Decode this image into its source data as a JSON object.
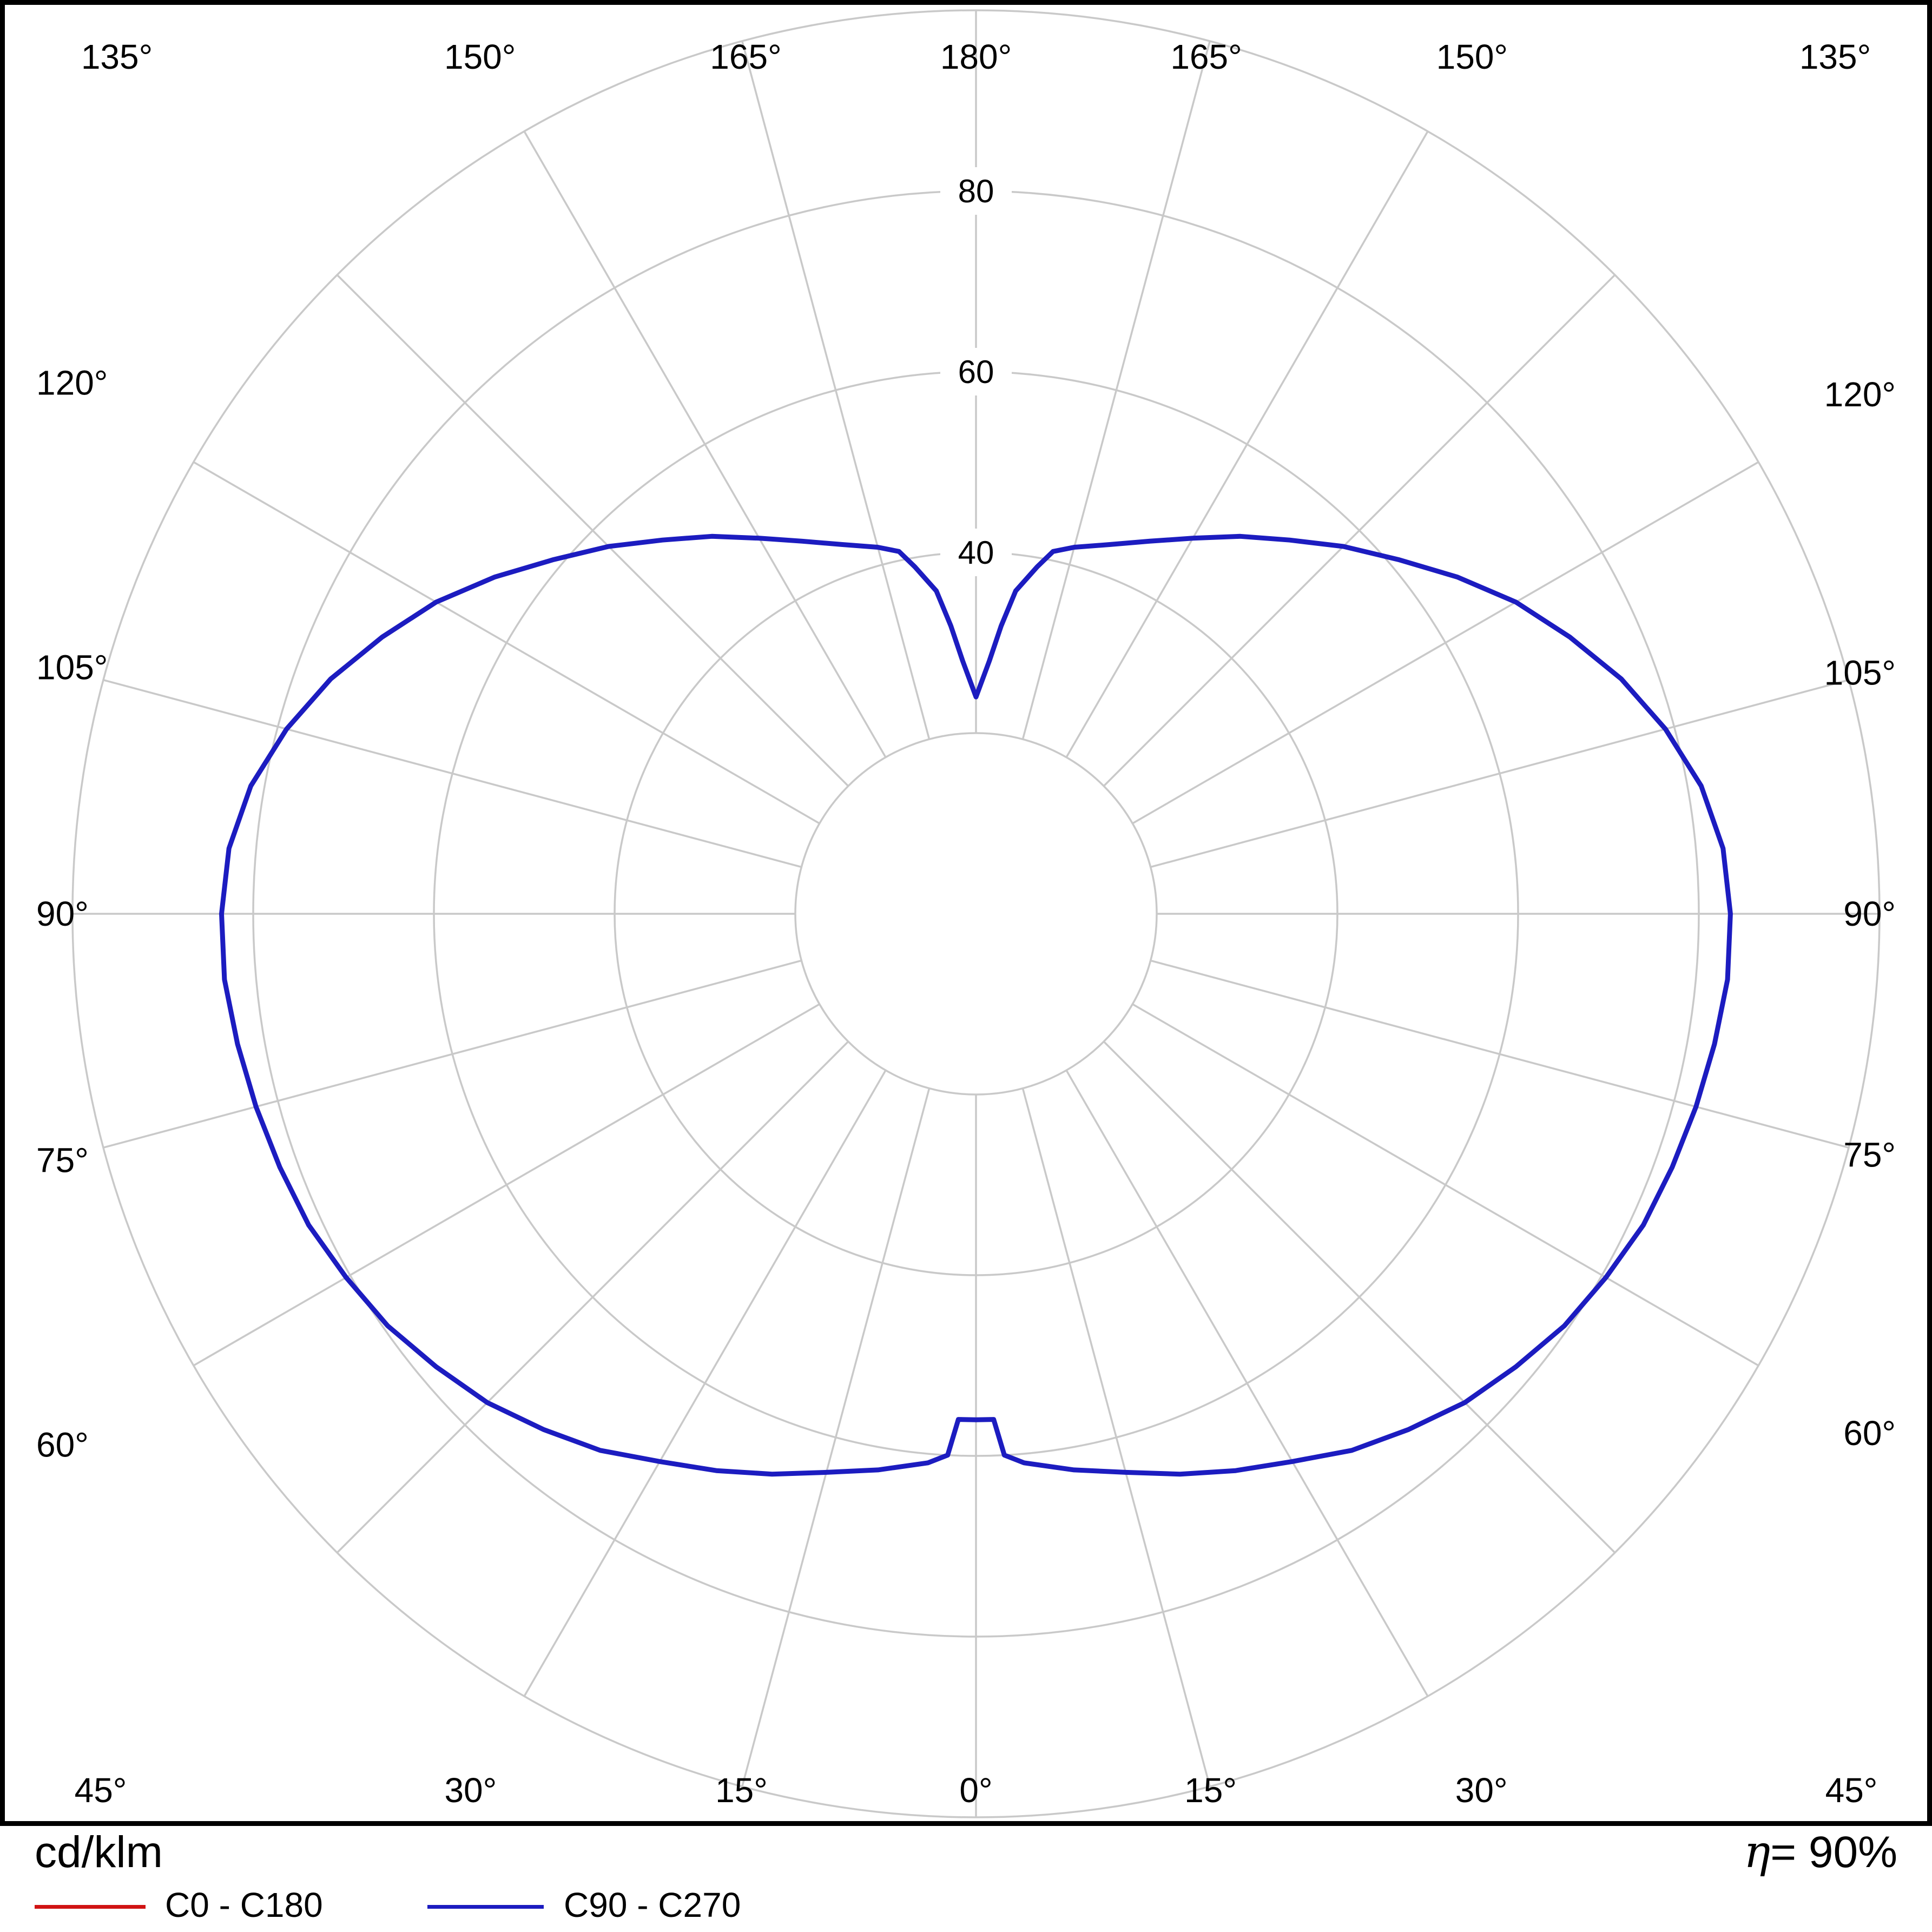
{
  "chart_data": {
    "type": "line",
    "subtype": "polar-photometric-luminous-intensity",
    "units_label": "cd/klm",
    "efficiency_symbol": "η",
    "efficiency_value": "= 90%",
    "angle_ticks_deg": [
      0,
      15,
      30,
      45,
      60,
      75,
      90,
      105,
      120,
      135,
      150,
      165,
      180
    ],
    "angle_tick_step_deg": 15,
    "radial_grid": [
      20,
      40,
      60,
      80,
      100
    ],
    "radial_tick_labels": [
      40,
      60,
      80
    ],
    "rmax": 100,
    "grid_color": "#c9c9c9",
    "grid_on": true,
    "legend_position": "bottom",
    "series": [
      {
        "name": "C0 - C180",
        "color": "#d01414",
        "gamma_deg": [
          0,
          2,
          3,
          5,
          10,
          15,
          20,
          25,
          30,
          35,
          40,
          45,
          50,
          55,
          60,
          65,
          70,
          75,
          80,
          85,
          90,
          95,
          100,
          105,
          110,
          115,
          120,
          125,
          130,
          135,
          140,
          145,
          150,
          155,
          160,
          165,
          168,
          170,
          173,
          175,
          177,
          180
        ],
        "values_cd_klm": [
          56,
          56,
          60,
          61,
          62.5,
          64,
          66,
          68,
          70,
          72.5,
          74.5,
          76.5,
          78,
          79.5,
          80.5,
          81.5,
          82,
          82.5,
          83,
          83.5,
          83.5,
          83,
          81.5,
          79,
          76,
          72.5,
          69,
          65,
          61,
          57.5,
          54,
          51,
          48,
          45.5,
          43.5,
          42,
          41,
          39,
          36,
          32,
          28,
          24
        ]
      },
      {
        "name": "C90 - C270",
        "color": "#1c1cc0",
        "gamma_deg": [
          0,
          2,
          3,
          5,
          10,
          15,
          20,
          25,
          30,
          35,
          40,
          45,
          50,
          55,
          60,
          65,
          70,
          75,
          80,
          85,
          90,
          95,
          100,
          105,
          110,
          115,
          120,
          125,
          130,
          135,
          140,
          145,
          150,
          155,
          160,
          165,
          168,
          170,
          173,
          175,
          177,
          180
        ],
        "values_cd_klm": [
          56,
          56,
          60,
          61,
          62.5,
          64,
          66,
          68,
          70,
          72.5,
          74.5,
          76.5,
          78,
          79.5,
          80.5,
          81.5,
          82,
          82.5,
          83,
          83.5,
          83.5,
          83,
          81.5,
          79,
          76,
          72.5,
          69,
          65,
          61,
          57.5,
          54,
          51,
          48,
          45.5,
          43.5,
          42,
          41,
          39,
          36,
          32,
          28,
          24
        ]
      }
    ]
  }
}
